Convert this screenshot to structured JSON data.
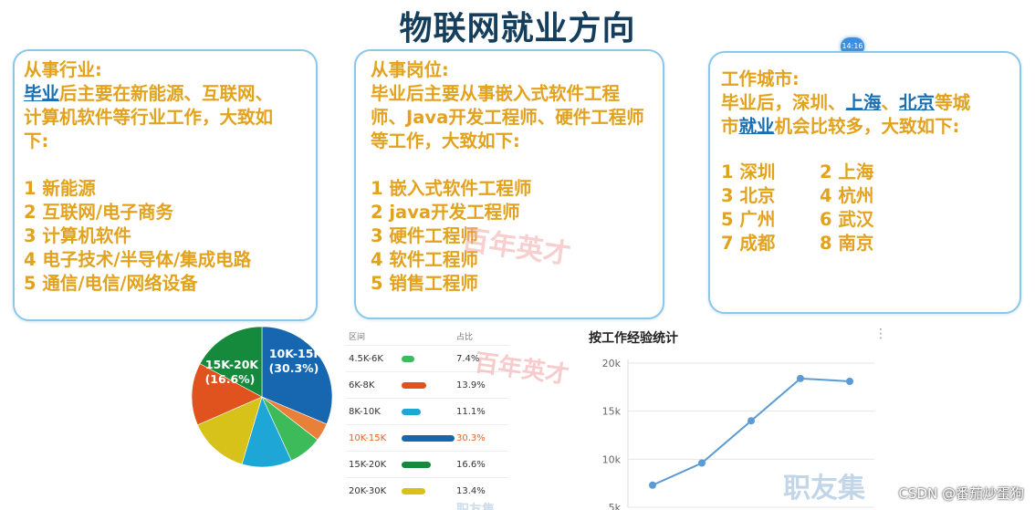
{
  "title": "物联网就业方向",
  "badge": "14:16",
  "industry": {
    "heading": "从事行业:",
    "intro_link": "毕业",
    "intro_rest_1": "后主要在新能源、互联网、",
    "intro_rest_2": "计算机软件等行业工作，大致如",
    "intro_rest_3": "下:",
    "items": [
      "1 新能源",
      "2 互联网/电子商务",
      "3 计算机软件",
      "4 电子技术/半导体/集成电路",
      "5 通信/电信/网络设备"
    ]
  },
  "position": {
    "heading": "从事岗位:",
    "intro_1": "毕业后主要从事嵌入式软件工程",
    "intro_2": "师、Java开发工程师、硬件工程师",
    "intro_3": "等工作，大致如下:",
    "items": [
      "1 嵌入式软件工程师",
      "2 java开发工程师",
      "3 硬件工程师",
      "4 软件工程师",
      "5 销售工程师"
    ]
  },
  "city": {
    "heading": "工作城市:",
    "intro_1a": "毕业后，深圳、",
    "intro_1b": "上海",
    "intro_1c": "、",
    "intro_1d": "北京",
    "intro_1e": "等城",
    "intro_2a": "市",
    "intro_2b": "就业",
    "intro_2c": "机会比较多，大致如下:",
    "items": [
      "1 深圳",
      "2 上海",
      "3 北京",
      "4 杭州",
      "5 广州",
      "6 武汉",
      "7 成都",
      "8 南京"
    ]
  },
  "salary_table": {
    "col_range": "区间",
    "col_share": "占比",
    "rows": [
      {
        "range": "4.5K-6K",
        "share": "7.4%",
        "value": 7.4,
        "color": "#3dbb5a"
      },
      {
        "range": "6K-8K",
        "share": "13.9%",
        "value": 13.9,
        "color": "#e0521e"
      },
      {
        "range": "8K-10K",
        "share": "11.1%",
        "value": 11.1,
        "color": "#1ea6d6"
      },
      {
        "range": "10K-15K",
        "share": "30.3%",
        "value": 30.3,
        "color": "#1667b0"
      },
      {
        "range": "15K-20K",
        "share": "16.6%",
        "value": 16.6,
        "color": "#168a3c"
      },
      {
        "range": "20K-30K",
        "share": "13.4%",
        "value": 13.4,
        "color": "#d7c21a"
      }
    ]
  },
  "chart_data": [
    {
      "type": "pie",
      "slices": [
        {
          "label": "10K-15K",
          "value": 30.3,
          "color": "#1667b0"
        },
        {
          "label": "",
          "value": 4.0,
          "color": "#e8803a"
        },
        {
          "label": "",
          "value": 7.4,
          "color": "#3dbb5a"
        },
        {
          "label": "",
          "value": 11.1,
          "color": "#1ea6d6"
        },
        {
          "label": "",
          "value": 13.4,
          "color": "#d7c21a"
        },
        {
          "label": "",
          "value": 13.9,
          "color": "#e0521e"
        },
        {
          "label": "15K-20K",
          "value": 16.6,
          "color": "#168a3c"
        }
      ],
      "annotations": [
        {
          "text": "10K-15K",
          "sub": "(30.3%)"
        },
        {
          "text": "15K-20K",
          "sub": "(16.6%)"
        }
      ]
    },
    {
      "type": "line",
      "title": "按工作经验统计",
      "more_icon": "⋮",
      "y_ticks": [
        "20k",
        "15k",
        "10k",
        "5k"
      ],
      "ylim": [
        5000,
        20000
      ],
      "values": [
        7300,
        9600,
        14000,
        18400,
        18100
      ],
      "color": "#5b9bd5"
    }
  ],
  "watermarks": {
    "w1": "百年英才",
    "w2": "职友集",
    "w3": "百年英才",
    "w4": "职友集",
    "csdn": "CSDN @番茄炒蛋狗"
  }
}
